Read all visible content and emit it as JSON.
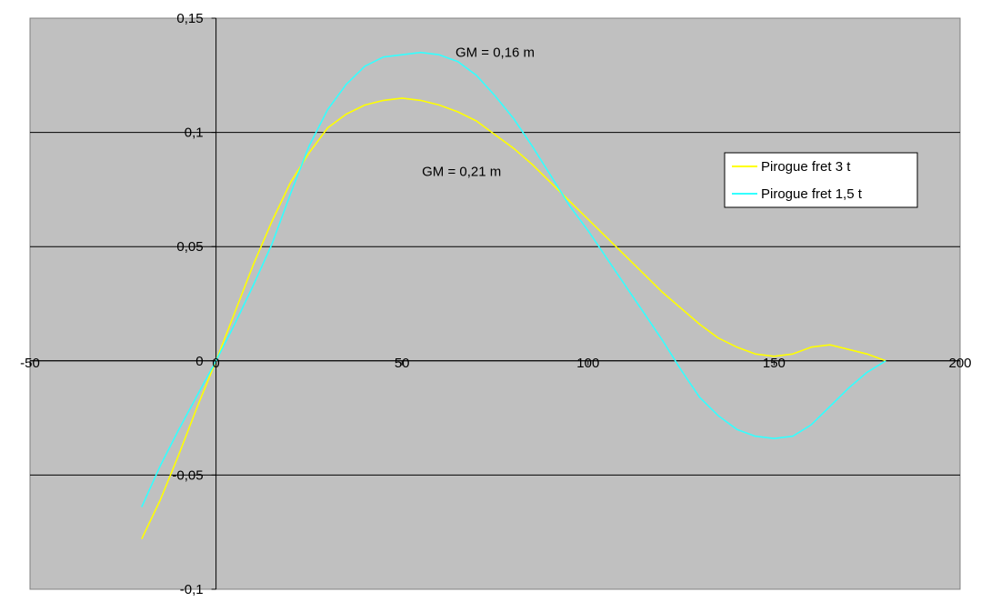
{
  "chart_data": {
    "type": "line",
    "title": "",
    "xlabel": "",
    "ylabel": "",
    "xlim": [
      -50,
      200
    ],
    "ylim": [
      -0.1,
      0.15
    ],
    "xticks": [
      -50,
      0,
      50,
      100,
      150,
      200
    ],
    "yticks": [
      -0.1,
      -0.05,
      0,
      0.05,
      0.1,
      0.15
    ],
    "xtick_labels": [
      "-50",
      "0",
      "50",
      "100",
      "150",
      "200"
    ],
    "ytick_labels": [
      "-0,1",
      "-0,05",
      "0",
      "0,05",
      "0,1",
      "0,15"
    ],
    "grid": "horizontal",
    "legend_position": "right",
    "plot_background": "#c0c0c0",
    "series": [
      {
        "name": "Pirogue fret 3 t",
        "color": "#ffff00",
        "x": [
          -20,
          -15,
          -10,
          -5,
          0,
          5,
          10,
          15,
          20,
          25,
          30,
          35,
          40,
          45,
          50,
          55,
          60,
          65,
          70,
          75,
          80,
          85,
          90,
          95,
          100,
          105,
          110,
          115,
          120,
          125,
          130,
          135,
          140,
          145,
          150,
          155,
          160,
          165,
          170,
          175,
          180
        ],
        "y": [
          -0.078,
          -0.061,
          -0.041,
          -0.02,
          0.0,
          0.021,
          0.042,
          0.061,
          0.078,
          0.091,
          0.102,
          0.108,
          0.112,
          0.114,
          0.115,
          0.114,
          0.112,
          0.109,
          0.105,
          0.099,
          0.093,
          0.086,
          0.078,
          0.07,
          0.062,
          0.054,
          0.046,
          0.038,
          0.03,
          0.023,
          0.016,
          0.01,
          0.006,
          0.003,
          0.002,
          0.003,
          0.006,
          0.007,
          0.005,
          0.003,
          0.0
        ]
      },
      {
        "name": "Pirogue fret 1,5 t",
        "color": "#33ffff",
        "x": [
          -20,
          -15,
          -10,
          -5,
          0,
          5,
          10,
          15,
          20,
          25,
          30,
          35,
          40,
          45,
          50,
          55,
          60,
          65,
          70,
          75,
          80,
          85,
          90,
          95,
          100,
          105,
          110,
          115,
          120,
          125,
          130,
          135,
          140,
          145,
          150,
          155,
          160,
          165,
          170,
          175,
          180
        ],
        "y": [
          -0.064,
          -0.046,
          -0.03,
          -0.015,
          0.0,
          0.016,
          0.033,
          0.051,
          0.073,
          0.094,
          0.11,
          0.121,
          0.129,
          0.133,
          0.134,
          0.135,
          0.134,
          0.131,
          0.125,
          0.116,
          0.106,
          0.094,
          0.081,
          0.068,
          0.057,
          0.045,
          0.033,
          0.021,
          0.009,
          -0.004,
          -0.016,
          -0.024,
          -0.03,
          -0.033,
          -0.034,
          -0.033,
          -0.028,
          -0.02,
          -0.012,
          -0.005,
          0.0
        ]
      }
    ],
    "annotations": [
      {
        "text": "GM = 0,16 m",
        "x": 75,
        "y": 0.135
      },
      {
        "text": "GM = 0,21 m",
        "x": 66,
        "y": 0.083
      }
    ]
  }
}
